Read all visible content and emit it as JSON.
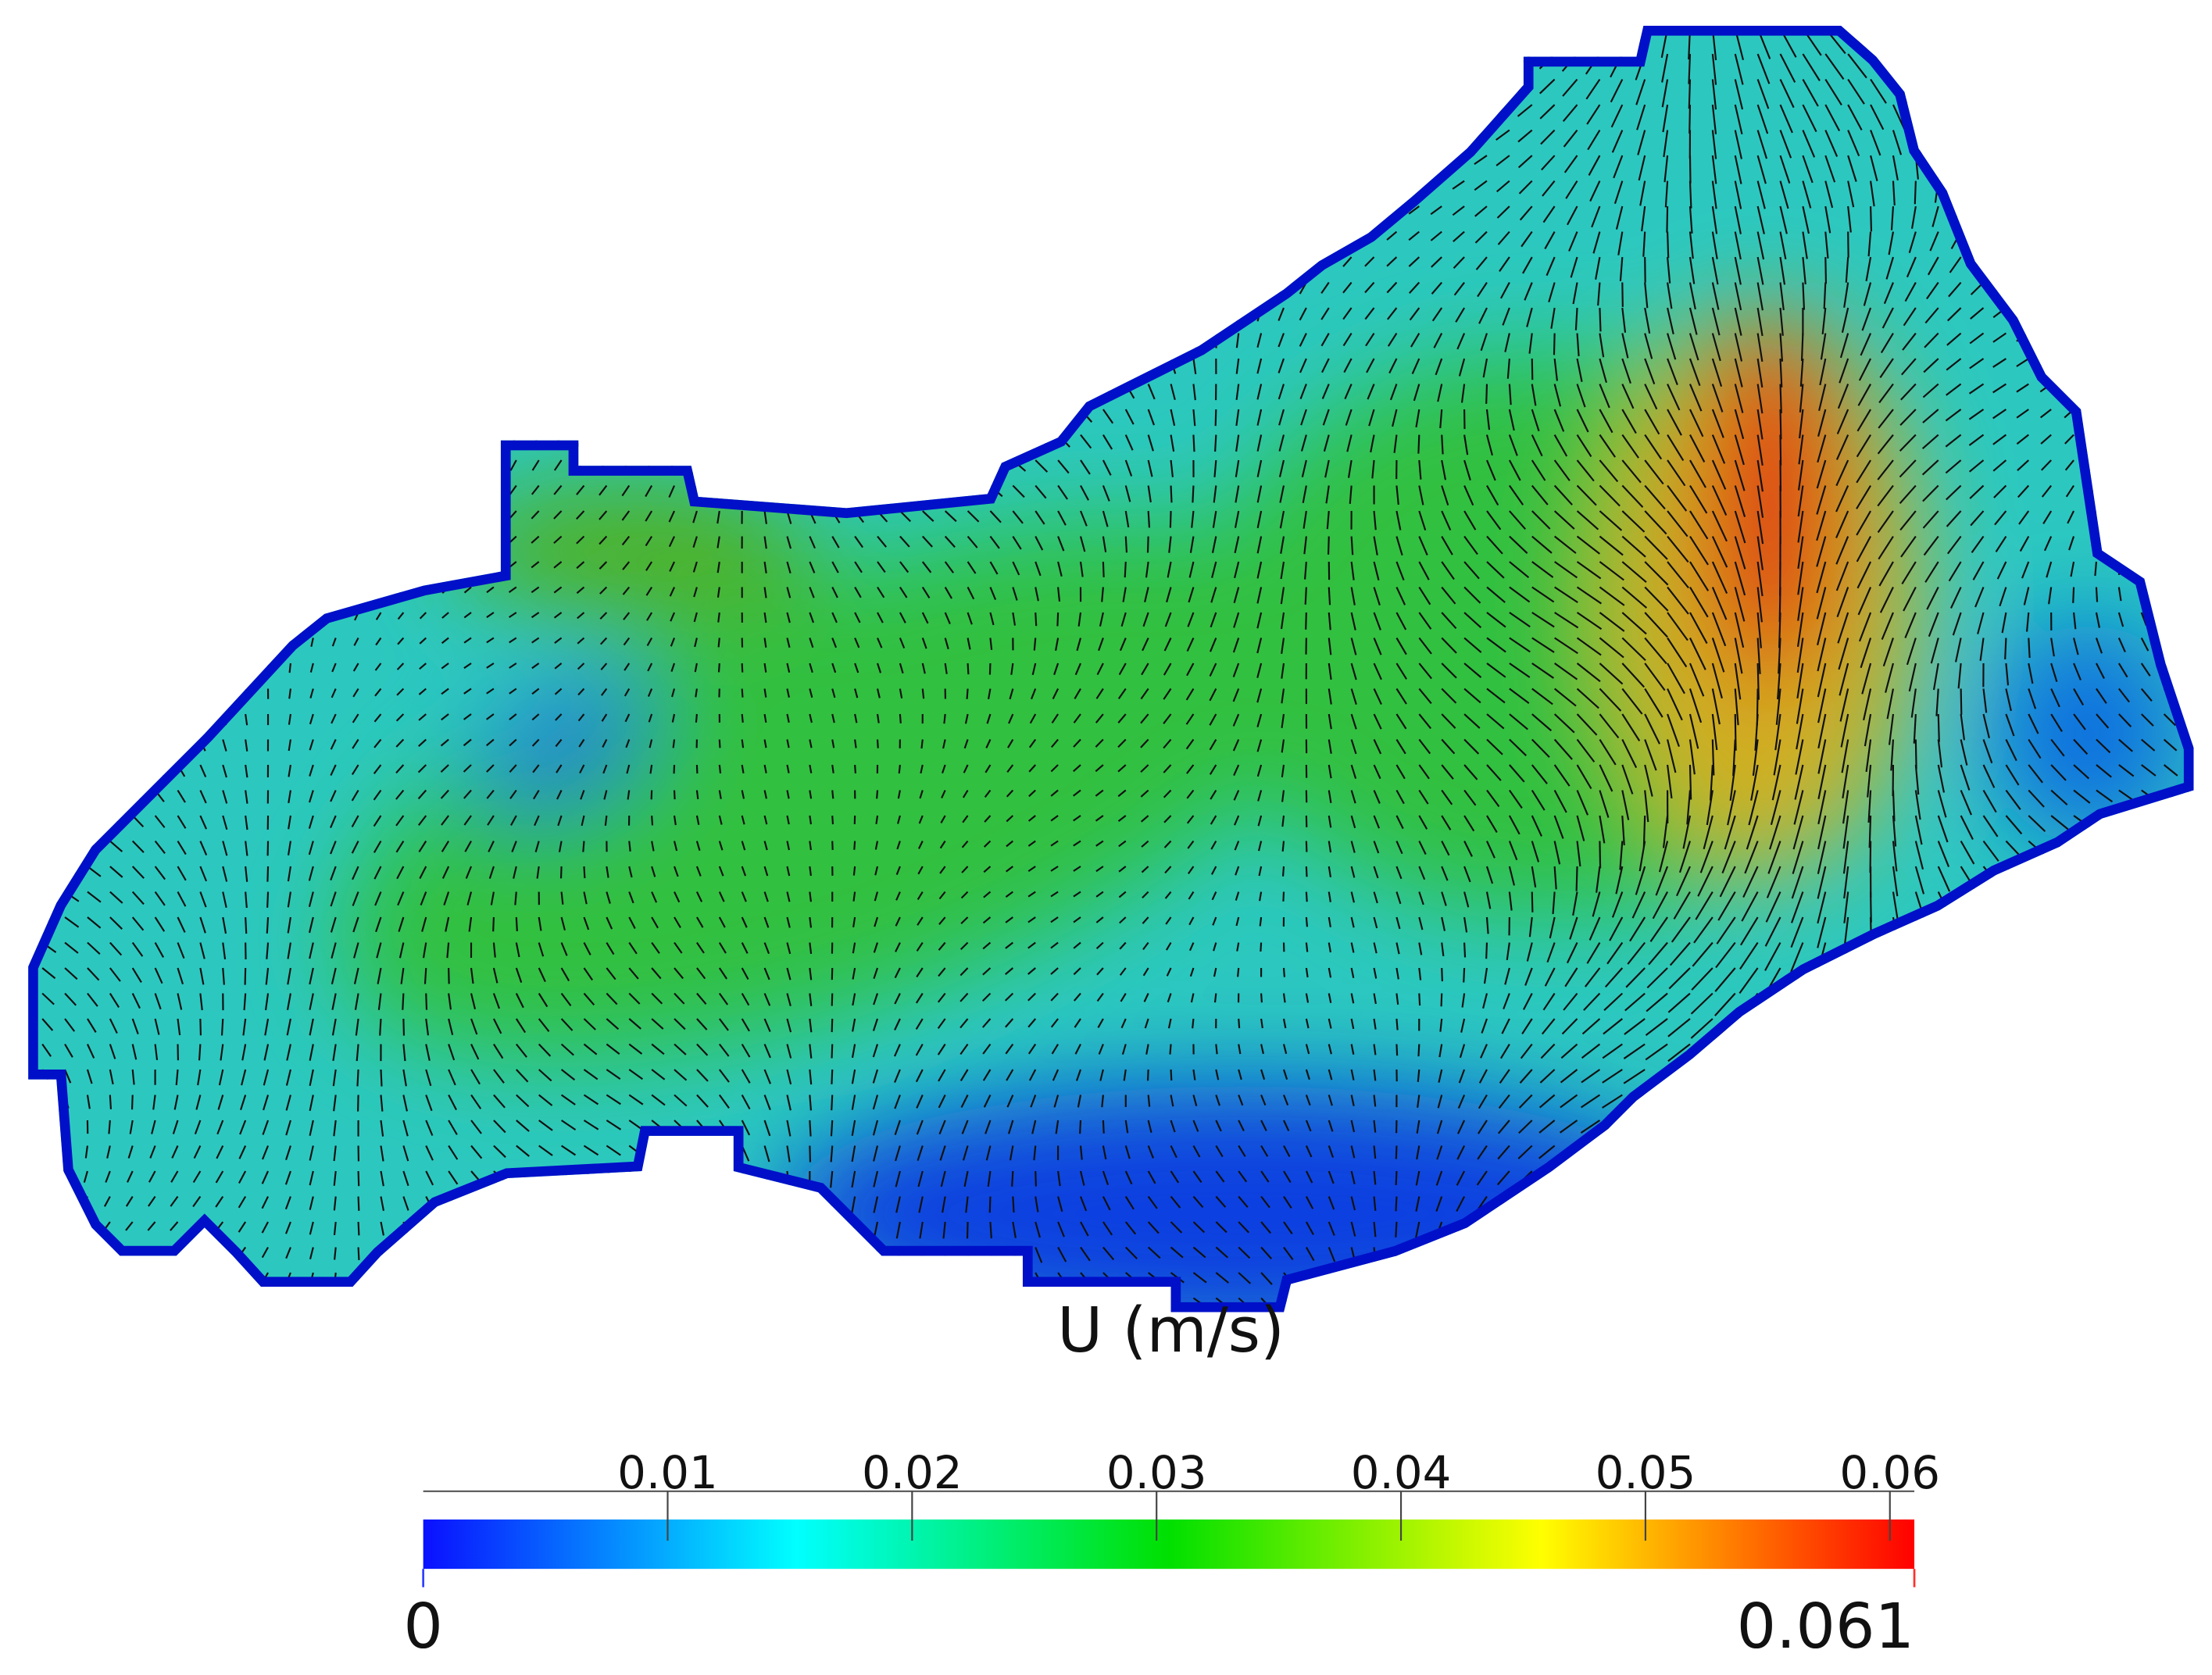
{
  "colorbar": {
    "title": "U (m/s)",
    "min": 0,
    "max": 0.061,
    "min_label": "0",
    "max_label": "0.061",
    "ticks": [
      0.01,
      0.02,
      0.03,
      0.04,
      0.05,
      0.06
    ],
    "colormap": [
      "#0a10ff",
      "#00ffff",
      "#00e000",
      "#ffff00",
      "#ff0000"
    ]
  }
}
